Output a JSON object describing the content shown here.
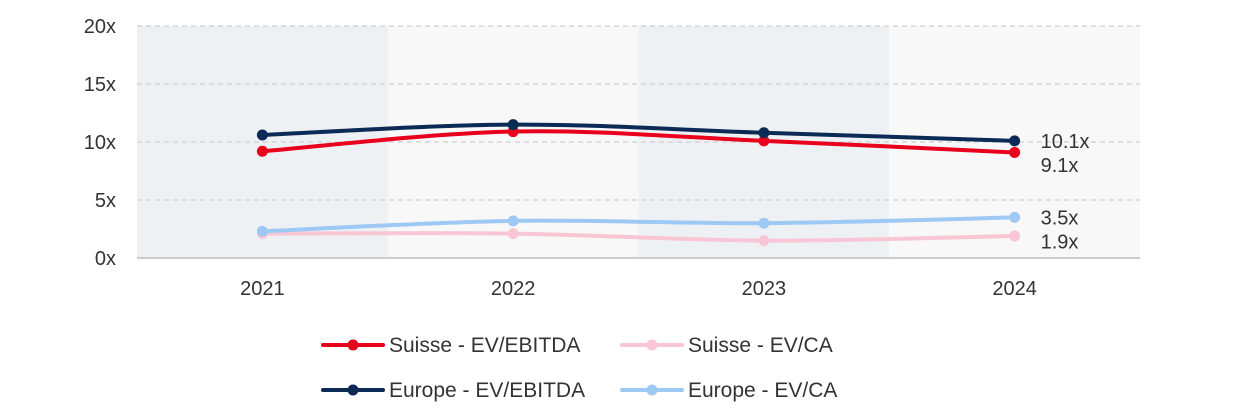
{
  "chart_data": {
    "type": "line",
    "title": "",
    "xlabel": "",
    "ylabel": "",
    "categories": [
      "2021",
      "2022",
      "2023",
      "2024"
    ],
    "ylim": [
      0,
      20
    ],
    "yticks": [
      "0x",
      "5x",
      "10x",
      "15x",
      "20x"
    ],
    "grid": true,
    "legend_position": "bottom",
    "series": [
      {
        "name": "Suisse - EV/EBITDA",
        "color": "#e8001c",
        "values": [
          9.2,
          10.9,
          10.1,
          9.1
        ],
        "end_label": "9.1x"
      },
      {
        "name": "Suisse - EV/CA",
        "color": "#f9c6d6",
        "values": [
          2.1,
          2.1,
          1.5,
          1.9
        ],
        "end_label": "1.9x"
      },
      {
        "name": "Europe - EV/EBITDA",
        "color": "#0b2a55",
        "values": [
          10.6,
          11.5,
          10.8,
          10.1
        ],
        "end_label": "10.1x"
      },
      {
        "name": "Europe - EV/CA",
        "color": "#9ec9f5",
        "values": [
          2.3,
          3.2,
          3.0,
          3.5
        ],
        "end_label": "3.5x"
      }
    ]
  }
}
